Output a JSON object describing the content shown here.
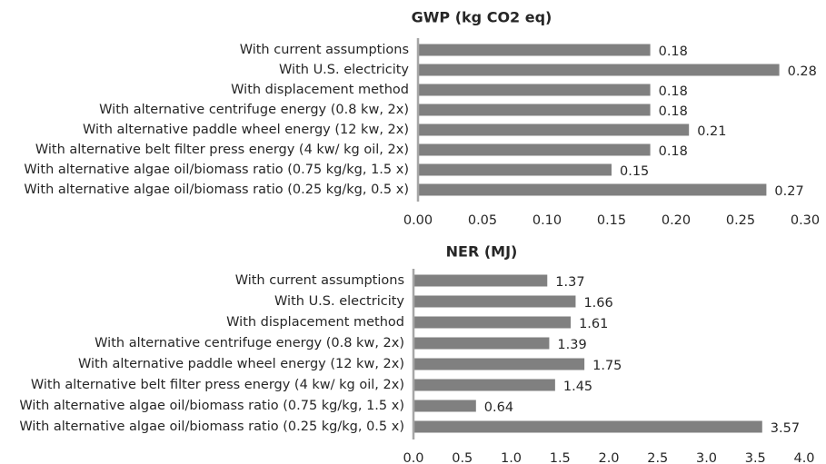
{
  "chart_data": [
    {
      "type": "bar",
      "orientation": "horizontal",
      "title": "GWP (kg CO2 eq)",
      "categories": [
        "With current assumptions",
        "With U.S. electricity",
        "With displacement method",
        "With alternative centrifuge energy (0.8 kw, 2x)",
        "With alternative paddle wheel energy (12 kw, 2x)",
        "With alternative belt filter press energy (4 kw/ kg oil, 2x)",
        "With alternative algae oil/biomass ratio (0.75 kg/kg, 1.5 x)",
        "With alternative algae oil/biomass ratio (0.25 kg/kg, 0.5 x)"
      ],
      "values": [
        0.18,
        0.28,
        0.18,
        0.18,
        0.21,
        0.18,
        0.15,
        0.27
      ],
      "color": "#808080",
      "xlim": [
        0,
        0.3
      ],
      "xticks": [
        {
          "value": 0,
          "label": "0.00"
        },
        0.05,
        {
          "value": 0.1,
          "label": "0.10"
        },
        0.15,
        {
          "value": 0.2,
          "label": "0.20"
        },
        0.25,
        {
          "value": 0.3,
          "label": "0.30"
        }
      ]
    },
    {
      "type": "bar",
      "orientation": "horizontal",
      "title": "NER (MJ)",
      "categories": [
        "With current assumptions",
        "With U.S. electricity",
        "With displacement method",
        "With alternative centrifuge energy (0.8 kw, 2x)",
        "With alternative paddle wheel energy (12 kw, 2x)",
        "With alternative belt filter press energy (4 kw/ kg oil, 2x)",
        "With alternative algae oil/biomass ratio (0.75 kg/kg, 1.5 x)",
        "With alternative algae oil/biomass ratio (0.25 kg/kg, 0.5 x)"
      ],
      "values": [
        1.37,
        1.66,
        1.61,
        1.39,
        1.75,
        1.45,
        0.64,
        3.57
      ],
      "color": "#808080",
      "xlim": [
        0,
        4
      ],
      "xticks": [
        {
          "value": 0,
          "label": "0.0"
        },
        0.5,
        {
          "value": 1,
          "label": "1.0"
        },
        1.5,
        {
          "value": 2,
          "label": "2.0"
        },
        2.5,
        {
          "value": 3,
          "label": "3.0"
        },
        3.5,
        {
          "value": 4,
          "label": "4.0"
        }
      ]
    }
  ]
}
